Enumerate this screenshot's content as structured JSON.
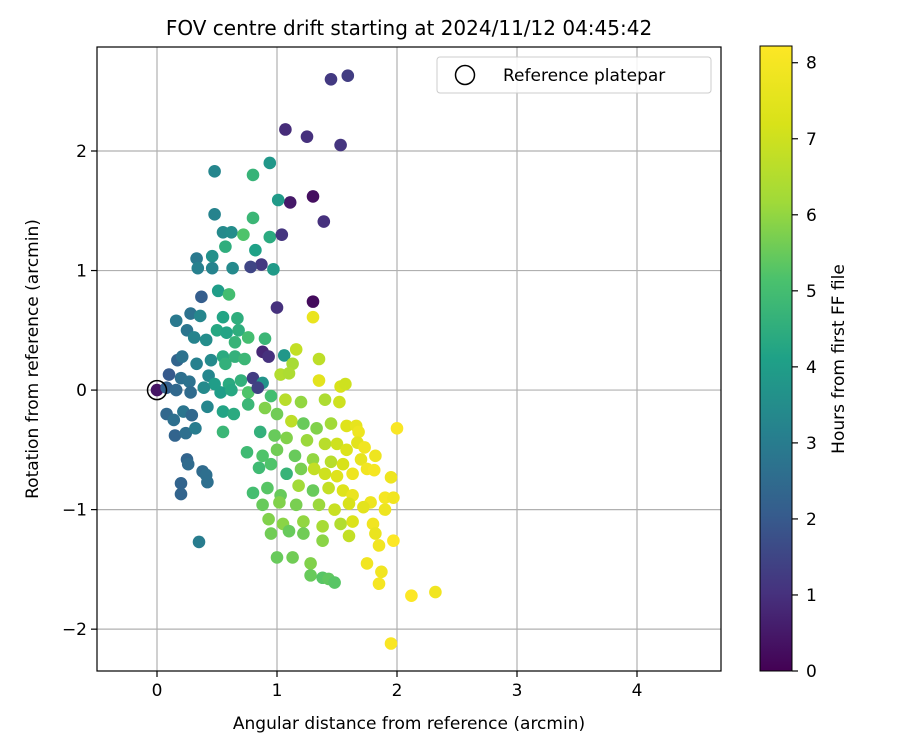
{
  "chart_data": {
    "type": "scatter",
    "title": "FOV centre drift starting at 2024/11/12 04:45:42",
    "xlabel": "Angular distance from reference (arcmin)",
    "ylabel": "Rotation from reference (arcmin)",
    "xlim": [
      -0.5,
      4.7
    ],
    "ylim": [
      -2.35,
      2.87
    ],
    "xticks": [
      0,
      1,
      2,
      3,
      4
    ],
    "yticks": [
      -2,
      -1,
      0,
      1,
      2
    ],
    "grid": true,
    "legend": {
      "placement": "top-right",
      "entries": [
        {
          "label": "Reference platepar",
          "marker": "open-circle"
        }
      ]
    },
    "reference_point": {
      "x": 0,
      "y": 0
    },
    "colorbar": {
      "label": "Hours from first FF file",
      "colormap": "viridis",
      "range": [
        0,
        8.22
      ],
      "ticks": [
        0,
        1,
        2,
        3,
        4,
        5,
        6,
        7,
        8
      ]
    },
    "points": [
      {
        "x": 1.45,
        "y": 2.6,
        "h": 1.2
      },
      {
        "x": 1.59,
        "y": 2.63,
        "h": 1.3
      },
      {
        "x": 1.07,
        "y": 2.18,
        "h": 0.9
      },
      {
        "x": 1.25,
        "y": 2.12,
        "h": 1.0
      },
      {
        "x": 1.53,
        "y": 2.05,
        "h": 1.1
      },
      {
        "x": 0.48,
        "y": 1.83,
        "h": 3.3
      },
      {
        "x": 0.94,
        "y": 1.9,
        "h": 3.8
      },
      {
        "x": 0.8,
        "y": 1.8,
        "h": 4.7
      },
      {
        "x": 1.3,
        "y": 1.62,
        "h": 0.3
      },
      {
        "x": 1.11,
        "y": 1.57,
        "h": 0.5
      },
      {
        "x": 1.01,
        "y": 1.59,
        "h": 3.9
      },
      {
        "x": 0.48,
        "y": 1.47,
        "h": 3.2
      },
      {
        "x": 0.8,
        "y": 1.44,
        "h": 4.8
      },
      {
        "x": 1.39,
        "y": 1.41,
        "h": 1.0
      },
      {
        "x": 0.55,
        "y": 1.32,
        "h": 3.4
      },
      {
        "x": 0.62,
        "y": 1.32,
        "h": 3.5
      },
      {
        "x": 0.72,
        "y": 1.3,
        "h": 5.2
      },
      {
        "x": 0.94,
        "y": 1.28,
        "h": 4.4
      },
      {
        "x": 1.04,
        "y": 1.3,
        "h": 1.1
      },
      {
        "x": 0.33,
        "y": 1.1,
        "h": 2.9
      },
      {
        "x": 0.46,
        "y": 1.12,
        "h": 3.6
      },
      {
        "x": 0.57,
        "y": 1.2,
        "h": 4.5
      },
      {
        "x": 0.82,
        "y": 1.17,
        "h": 4.1
      },
      {
        "x": 0.87,
        "y": 1.05,
        "h": 1.2
      },
      {
        "x": 0.34,
        "y": 1.02,
        "h": 3.1
      },
      {
        "x": 0.46,
        "y": 1.02,
        "h": 3.2
      },
      {
        "x": 0.63,
        "y": 1.02,
        "h": 3.4
      },
      {
        "x": 0.78,
        "y": 1.03,
        "h": 1.5
      },
      {
        "x": 0.97,
        "y": 1.01,
        "h": 3.9
      },
      {
        "x": 0.37,
        "y": 0.78,
        "h": 2.1
      },
      {
        "x": 0.51,
        "y": 0.83,
        "h": 4.0
      },
      {
        "x": 0.6,
        "y": 0.8,
        "h": 5.0
      },
      {
        "x": 1.3,
        "y": 0.74,
        "h": 0.2
      },
      {
        "x": 1.0,
        "y": 0.69,
        "h": 1.0
      },
      {
        "x": 0.28,
        "y": 0.64,
        "h": 2.7
      },
      {
        "x": 0.16,
        "y": 0.58,
        "h": 2.9
      },
      {
        "x": 0.36,
        "y": 0.62,
        "h": 3.3
      },
      {
        "x": 0.55,
        "y": 0.61,
        "h": 4.2
      },
      {
        "x": 0.67,
        "y": 0.6,
        "h": 4.5
      },
      {
        "x": 0.5,
        "y": 0.5,
        "h": 4.3
      },
      {
        "x": 0.25,
        "y": 0.5,
        "h": 2.8
      },
      {
        "x": 0.31,
        "y": 0.44,
        "h": 3.2
      },
      {
        "x": 0.41,
        "y": 0.42,
        "h": 3.5
      },
      {
        "x": 0.58,
        "y": 0.48,
        "h": 4.2
      },
      {
        "x": 0.68,
        "y": 0.5,
        "h": 4.5
      },
      {
        "x": 0.76,
        "y": 0.44,
        "h": 5.0
      },
      {
        "x": 0.65,
        "y": 0.4,
        "h": 4.7
      },
      {
        "x": 0.9,
        "y": 0.43,
        "h": 4.8
      },
      {
        "x": 1.3,
        "y": 0.61,
        "h": 7.7
      },
      {
        "x": 0.17,
        "y": 0.25,
        "h": 2.3
      },
      {
        "x": 0.21,
        "y": 0.28,
        "h": 2.7
      },
      {
        "x": 0.33,
        "y": 0.22,
        "h": 3.1
      },
      {
        "x": 0.45,
        "y": 0.25,
        "h": 3.4
      },
      {
        "x": 0.55,
        "y": 0.28,
        "h": 4.4
      },
      {
        "x": 0.57,
        "y": 0.22,
        "h": 4.6
      },
      {
        "x": 0.65,
        "y": 0.28,
        "h": 4.6
      },
      {
        "x": 0.73,
        "y": 0.26,
        "h": 4.8
      },
      {
        "x": 0.88,
        "y": 0.32,
        "h": 0.8
      },
      {
        "x": 0.93,
        "y": 0.28,
        "h": 1.0
      },
      {
        "x": 1.06,
        "y": 0.29,
        "h": 3.8
      },
      {
        "x": 1.16,
        "y": 0.34,
        "h": 6.8
      },
      {
        "x": 1.13,
        "y": 0.22,
        "h": 6.3
      },
      {
        "x": 1.35,
        "y": 0.26,
        "h": 6.7
      },
      {
        "x": 0.1,
        "y": 0.13,
        "h": 2.0
      },
      {
        "x": 0.2,
        "y": 0.1,
        "h": 2.6
      },
      {
        "x": 0.27,
        "y": 0.07,
        "h": 2.7
      },
      {
        "x": 0.43,
        "y": 0.12,
        "h": 3.3
      },
      {
        "x": 0.48,
        "y": 0.05,
        "h": 4.0
      },
      {
        "x": 0.6,
        "y": 0.05,
        "h": 4.4
      },
      {
        "x": 0.7,
        "y": 0.08,
        "h": 4.6
      },
      {
        "x": 0.8,
        "y": 0.1,
        "h": 1.3
      },
      {
        "x": 0.88,
        "y": 0.06,
        "h": 3.7
      },
      {
        "x": 1.03,
        "y": 0.13,
        "h": 6.5
      },
      {
        "x": 1.1,
        "y": 0.14,
        "h": 6.4
      },
      {
        "x": 1.35,
        "y": 0.08,
        "h": 7.5
      },
      {
        "x": 1.53,
        "y": 0.03,
        "h": 7.2
      },
      {
        "x": 1.57,
        "y": 0.05,
        "h": 7.0
      },
      {
        "x": 0.0,
        "y": 0.0,
        "h": 0.4
      },
      {
        "x": 0.08,
        "y": 0.02,
        "h": 2.2
      },
      {
        "x": 0.16,
        "y": 0.0,
        "h": 2.4
      },
      {
        "x": 0.28,
        "y": -0.02,
        "h": 2.5
      },
      {
        "x": 0.39,
        "y": 0.02,
        "h": 3.4
      },
      {
        "x": 0.53,
        "y": -0.02,
        "h": 4.0
      },
      {
        "x": 0.62,
        "y": 0.0,
        "h": 4.3
      },
      {
        "x": 0.76,
        "y": -0.02,
        "h": 5.2
      },
      {
        "x": 0.84,
        "y": 0.02,
        "h": 1.4
      },
      {
        "x": 0.95,
        "y": -0.05,
        "h": 5.0
      },
      {
        "x": 1.07,
        "y": -0.08,
        "h": 6.6
      },
      {
        "x": 1.2,
        "y": -0.1,
        "h": 6.0
      },
      {
        "x": 1.4,
        "y": -0.08,
        "h": 6.4
      },
      {
        "x": 1.52,
        "y": -0.1,
        "h": 7.0
      },
      {
        "x": 0.08,
        "y": -0.2,
        "h": 2.4
      },
      {
        "x": 0.14,
        "y": -0.25,
        "h": 2.6
      },
      {
        "x": 0.22,
        "y": -0.18,
        "h": 2.8
      },
      {
        "x": 0.29,
        "y": -0.21,
        "h": 2.4
      },
      {
        "x": 0.42,
        "y": -0.14,
        "h": 3.3
      },
      {
        "x": 0.55,
        "y": -0.18,
        "h": 4.2
      },
      {
        "x": 0.64,
        "y": -0.2,
        "h": 4.4
      },
      {
        "x": 0.76,
        "y": -0.12,
        "h": 4.8
      },
      {
        "x": 0.9,
        "y": -0.15,
        "h": 5.8
      },
      {
        "x": 1.0,
        "y": -0.2,
        "h": 5.6
      },
      {
        "x": 1.12,
        "y": -0.26,
        "h": 6.7
      },
      {
        "x": 1.22,
        "y": -0.28,
        "h": 5.5
      },
      {
        "x": 1.33,
        "y": -0.32,
        "h": 5.8
      },
      {
        "x": 1.45,
        "y": -0.28,
        "h": 6.2
      },
      {
        "x": 1.58,
        "y": -0.3,
        "h": 7.4
      },
      {
        "x": 1.66,
        "y": -0.3,
        "h": 7.6
      },
      {
        "x": 1.68,
        "y": -0.35,
        "h": 7.8
      },
      {
        "x": 2.0,
        "y": -0.32,
        "h": 8.1
      },
      {
        "x": 0.15,
        "y": -0.38,
        "h": 2.3
      },
      {
        "x": 0.24,
        "y": -0.36,
        "h": 2.6
      },
      {
        "x": 0.32,
        "y": -0.32,
        "h": 3.0
      },
      {
        "x": 0.55,
        "y": -0.35,
        "h": 4.8
      },
      {
        "x": 0.86,
        "y": -0.35,
        "h": 4.6
      },
      {
        "x": 0.98,
        "y": -0.38,
        "h": 5.5
      },
      {
        "x": 1.08,
        "y": -0.4,
        "h": 5.8
      },
      {
        "x": 1.25,
        "y": -0.42,
        "h": 6.1
      },
      {
        "x": 1.4,
        "y": -0.45,
        "h": 6.6
      },
      {
        "x": 1.5,
        "y": -0.45,
        "h": 7.0
      },
      {
        "x": 1.58,
        "y": -0.5,
        "h": 7.3
      },
      {
        "x": 1.67,
        "y": -0.44,
        "h": 7.5
      },
      {
        "x": 1.73,
        "y": -0.48,
        "h": 7.9
      },
      {
        "x": 0.75,
        "y": -0.52,
        "h": 4.9
      },
      {
        "x": 0.88,
        "y": -0.55,
        "h": 5.2
      },
      {
        "x": 1.0,
        "y": -0.5,
        "h": 5.6
      },
      {
        "x": 1.15,
        "y": -0.55,
        "h": 5.5
      },
      {
        "x": 1.3,
        "y": -0.58,
        "h": 6.0
      },
      {
        "x": 1.45,
        "y": -0.6,
        "h": 6.6
      },
      {
        "x": 1.55,
        "y": -0.62,
        "h": 7.2
      },
      {
        "x": 1.7,
        "y": -0.58,
        "h": 7.6
      },
      {
        "x": 1.82,
        "y": -0.55,
        "h": 7.8
      },
      {
        "x": 0.25,
        "y": -0.58,
        "h": 2.3
      },
      {
        "x": 0.26,
        "y": -0.62,
        "h": 2.5
      },
      {
        "x": 0.85,
        "y": -0.65,
        "h": 4.9
      },
      {
        "x": 0.95,
        "y": -0.62,
        "h": 5.2
      },
      {
        "x": 1.08,
        "y": -0.7,
        "h": 4.7
      },
      {
        "x": 1.2,
        "y": -0.66,
        "h": 5.7
      },
      {
        "x": 1.31,
        "y": -0.66,
        "h": 6.8
      },
      {
        "x": 1.4,
        "y": -0.7,
        "h": 7.0
      },
      {
        "x": 1.5,
        "y": -0.72,
        "h": 7.4
      },
      {
        "x": 1.63,
        "y": -0.7,
        "h": 7.8
      },
      {
        "x": 1.75,
        "y": -0.66,
        "h": 7.9
      },
      {
        "x": 1.81,
        "y": -0.67,
        "h": 8.0
      },
      {
        "x": 1.95,
        "y": -0.73,
        "h": 7.8
      },
      {
        "x": 0.38,
        "y": -0.68,
        "h": 2.5
      },
      {
        "x": 0.41,
        "y": -0.71,
        "h": 2.6
      },
      {
        "x": 0.2,
        "y": -0.78,
        "h": 2.3
      },
      {
        "x": 0.42,
        "y": -0.77,
        "h": 2.6
      },
      {
        "x": 0.2,
        "y": -0.87,
        "h": 2.3
      },
      {
        "x": 0.8,
        "y": -0.86,
        "h": 5.0
      },
      {
        "x": 0.92,
        "y": -0.82,
        "h": 5.3
      },
      {
        "x": 1.03,
        "y": -0.88,
        "h": 5.5
      },
      {
        "x": 1.18,
        "y": -0.8,
        "h": 6.2
      },
      {
        "x": 1.3,
        "y": -0.84,
        "h": 5.5
      },
      {
        "x": 1.43,
        "y": -0.82,
        "h": 6.8
      },
      {
        "x": 1.55,
        "y": -0.84,
        "h": 7.4
      },
      {
        "x": 1.63,
        "y": -0.88,
        "h": 7.7
      },
      {
        "x": 1.78,
        "y": -0.94,
        "h": 7.8
      },
      {
        "x": 1.9,
        "y": -0.9,
        "h": 8.0
      },
      {
        "x": 1.97,
        "y": -0.9,
        "h": 7.9
      },
      {
        "x": 0.88,
        "y": -0.96,
        "h": 5.5
      },
      {
        "x": 1.02,
        "y": -0.94,
        "h": 5.8
      },
      {
        "x": 1.16,
        "y": -0.96,
        "h": 5.7
      },
      {
        "x": 1.35,
        "y": -0.96,
        "h": 6.1
      },
      {
        "x": 1.48,
        "y": -1.0,
        "h": 6.9
      },
      {
        "x": 1.6,
        "y": -0.95,
        "h": 7.2
      },
      {
        "x": 1.72,
        "y": -0.98,
        "h": 7.5
      },
      {
        "x": 1.9,
        "y": -1.0,
        "h": 7.8
      },
      {
        "x": 0.93,
        "y": -1.08,
        "h": 5.8
      },
      {
        "x": 1.05,
        "y": -1.12,
        "h": 5.9
      },
      {
        "x": 1.22,
        "y": -1.1,
        "h": 6.0
      },
      {
        "x": 1.38,
        "y": -1.14,
        "h": 6.3
      },
      {
        "x": 1.53,
        "y": -1.12,
        "h": 6.5
      },
      {
        "x": 1.63,
        "y": -1.1,
        "h": 7.3
      },
      {
        "x": 1.8,
        "y": -1.12,
        "h": 7.9
      },
      {
        "x": 0.95,
        "y": -1.2,
        "h": 5.6
      },
      {
        "x": 1.1,
        "y": -1.18,
        "h": 5.5
      },
      {
        "x": 1.22,
        "y": -1.2,
        "h": 5.6
      },
      {
        "x": 1.38,
        "y": -1.26,
        "h": 5.9
      },
      {
        "x": 1.6,
        "y": -1.22,
        "h": 6.8
      },
      {
        "x": 1.82,
        "y": -1.2,
        "h": 7.7
      },
      {
        "x": 1.85,
        "y": -1.3,
        "h": 7.9
      },
      {
        "x": 1.97,
        "y": -1.26,
        "h": 8.2
      },
      {
        "x": 0.35,
        "y": -1.27,
        "h": 3.0
      },
      {
        "x": 1.0,
        "y": -1.4,
        "h": 5.5
      },
      {
        "x": 1.13,
        "y": -1.4,
        "h": 5.6
      },
      {
        "x": 1.28,
        "y": -1.45,
        "h": 5.8
      },
      {
        "x": 1.75,
        "y": -1.45,
        "h": 7.9
      },
      {
        "x": 1.28,
        "y": -1.55,
        "h": 5.5
      },
      {
        "x": 1.38,
        "y": -1.57,
        "h": 5.3
      },
      {
        "x": 1.43,
        "y": -1.58,
        "h": 5.4
      },
      {
        "x": 1.48,
        "y": -1.61,
        "h": 5.3
      },
      {
        "x": 1.87,
        "y": -1.52,
        "h": 7.9
      },
      {
        "x": 1.85,
        "y": -1.62,
        "h": 8.0
      },
      {
        "x": 2.12,
        "y": -1.72,
        "h": 8.2
      },
      {
        "x": 2.32,
        "y": -1.69,
        "h": 7.9
      },
      {
        "x": 1.95,
        "y": -2.12,
        "h": 8.1
      }
    ]
  }
}
